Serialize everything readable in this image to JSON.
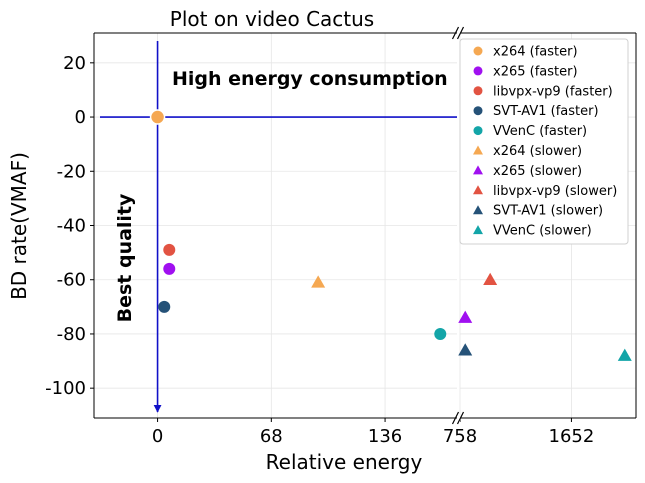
{
  "chart_data": {
    "type": "scatter",
    "title": "Plot on video Cactus",
    "xlabel": "Relative energy",
    "ylabel": "BD rate(VMAF)",
    "ylim": [
      -111,
      31
    ],
    "yticks": [
      20,
      0,
      -20,
      -40,
      -60,
      -80,
      -100
    ],
    "broken_x_axis": true,
    "left_xlim": [
      -38,
      179
    ],
    "left_xticks": [
      0,
      68,
      136
    ],
    "right_xlim": [
      758,
      2170
    ],
    "right_xticks": [
      758,
      1652
    ],
    "grid": true,
    "legend_position": "upper right",
    "annotations": {
      "top": "High energy consumption",
      "left": "Best quality"
    },
    "reference_point": {
      "x": 0,
      "y": 0,
      "color": "#f5a852"
    },
    "series": [
      {
        "name": "x264 (faster)",
        "marker": "circle",
        "color": "#f5a852",
        "points": []
      },
      {
        "name": "x265 (faster)",
        "marker": "circle",
        "color": "#a010f0",
        "points": [
          {
            "x": 7,
            "y": -56
          }
        ]
      },
      {
        "name": "libvpx-vp9 (faster)",
        "marker": "circle",
        "color": "#e25342",
        "points": [
          {
            "x": 7,
            "y": -49
          }
        ]
      },
      {
        "name": "SVT-AV1 (faster)",
        "marker": "circle",
        "color": "#255278",
        "points": [
          {
            "x": 4,
            "y": -70
          }
        ]
      },
      {
        "name": "VVenC (faster)",
        "marker": "circle",
        "color": "#13a5a8",
        "points": [
          {
            "x": 169,
            "y": -80
          }
        ]
      },
      {
        "name": "x264 (slower)",
        "marker": "triangle",
        "color": "#f5a852",
        "points": [
          {
            "x": 96,
            "y": -61
          }
        ]
      },
      {
        "name": "x265 (slower)",
        "marker": "triangle",
        "color": "#a010f0",
        "points": [
          {
            "x": 800,
            "y": -74
          }
        ]
      },
      {
        "name": "libvpx-vp9 (slower)",
        "marker": "triangle",
        "color": "#e25342",
        "points": [
          {
            "x": 1000,
            "y": -60
          }
        ]
      },
      {
        "name": "SVT-AV1 (slower)",
        "marker": "triangle",
        "color": "#255278",
        "points": [
          {
            "x": 800,
            "y": -86
          }
        ]
      },
      {
        "name": "VVenC (slower)",
        "marker": "triangle",
        "color": "#13a5a8",
        "points": [
          {
            "x": 2080,
            "y": -88
          }
        ]
      }
    ]
  }
}
